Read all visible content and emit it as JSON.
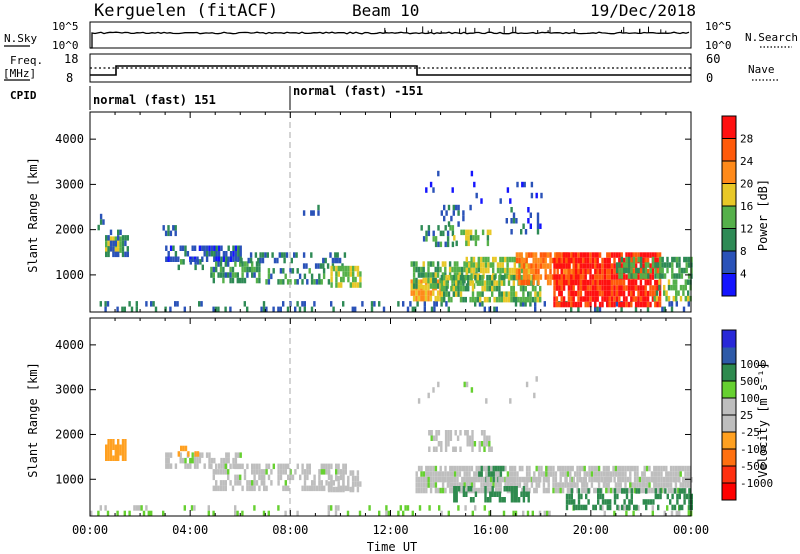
{
  "header": {
    "station": "Kerguelen (fitACF)",
    "beam": "Beam 10",
    "date": "19/Dec/2018"
  },
  "status_panels": {
    "nsky_label": "N.Sky",
    "nsky_ticks": [
      "10^5",
      "10^0"
    ],
    "nsearch_label": "N.Search",
    "nsearch_ticks": [
      "10^5",
      "10^0"
    ],
    "freq_label": "Freq.",
    "freq_unit": "[MHz]",
    "freq_ticks": [
      "18",
      "8"
    ],
    "nave_label": "Nave",
    "nave_ticks": [
      "60",
      "0"
    ],
    "cpid_label": "CPID",
    "cpid_segments": [
      "normal (fast) 151",
      "normal (fast) -151"
    ]
  },
  "colors": {
    "power_scale": [
      "#1414ff",
      "#2a52b8",
      "#2e8a55",
      "#55b04a",
      "#e8c828",
      "#ff8a1a",
      "#ff5a0a",
      "#ff1010"
    ],
    "velocity_scale": [
      "#2828d8",
      "#2e5aa8",
      "#2e8a4e",
      "#66d030",
      "#bebebe",
      "#bebebe",
      "#ffa020",
      "#ff7010",
      "#ff3010",
      "#ff0000"
    ],
    "background": "#ffffff"
  },
  "chart_data": [
    {
      "type": "heatmap",
      "title": "",
      "xlabel": "",
      "ylabel": "Slant Range [km]",
      "x_ticks": [
        "00:00",
        "04:00",
        "08:00",
        "12:00",
        "16:00",
        "20:00",
        "00:00"
      ],
      "y_ticks": [
        "1000",
        "2000",
        "3000",
        "4000"
      ],
      "xlim_hours": [
        0,
        24
      ],
      "ylim_km": [
        180,
        4600
      ],
      "colorbar_label": "Power [dB]",
      "colorbar_ticks": [
        "4",
        "8",
        "12",
        "16",
        "20",
        "24",
        "28"
      ],
      "colorbar_range": [
        0,
        32
      ],
      "regions": [
        {
          "t0": 0.0,
          "t1": 24.0,
          "r0": 180,
          "r1": 420,
          "value": 8,
          "density": 0.22
        },
        {
          "t0": 0.3,
          "t1": 0.6,
          "r0": 2100,
          "r1": 2350,
          "value": 8,
          "density": 0.5
        },
        {
          "t0": 0.6,
          "t1": 1.3,
          "r0": 1500,
          "r1": 1850,
          "value": 16,
          "density": 0.85
        },
        {
          "t0": 0.6,
          "t1": 1.5,
          "r0": 1400,
          "r1": 2000,
          "value": 8,
          "density": 0.5
        },
        {
          "t0": 2.8,
          "t1": 3.4,
          "r0": 1900,
          "r1": 2100,
          "value": 7,
          "density": 0.5
        },
        {
          "t0": 3.0,
          "t1": 6.0,
          "r0": 1400,
          "r1": 1650,
          "value": 6,
          "density": 0.65
        },
        {
          "t0": 3.5,
          "t1": 4.5,
          "r0": 1150,
          "r1": 1350,
          "value": 9,
          "density": 0.4
        },
        {
          "t0": 4.8,
          "t1": 6.8,
          "r0": 900,
          "r1": 1300,
          "value": 11,
          "density": 0.55
        },
        {
          "t0": 6.0,
          "t1": 8.3,
          "r0": 1300,
          "r1": 1500,
          "value": 8,
          "density": 0.55
        },
        {
          "t0": 7.0,
          "t1": 9.5,
          "r0": 900,
          "r1": 1150,
          "value": 10,
          "density": 0.5
        },
        {
          "t0": 8.5,
          "t1": 10.2,
          "r0": 1150,
          "r1": 1500,
          "value": 8,
          "density": 0.5
        },
        {
          "t0": 8.5,
          "t1": 9.3,
          "r0": 2350,
          "r1": 2550,
          "value": 8,
          "density": 0.35
        },
        {
          "t0": 9.6,
          "t1": 10.8,
          "r0": 800,
          "r1": 1200,
          "value": 16,
          "density": 0.7
        },
        {
          "t0": 12.8,
          "t1": 14.0,
          "r0": 500,
          "r1": 900,
          "value": 20,
          "density": 0.85
        },
        {
          "t0": 12.8,
          "t1": 15.5,
          "r0": 800,
          "r1": 1300,
          "value": 13,
          "density": 0.7
        },
        {
          "t0": 13.2,
          "t1": 14.5,
          "r0": 1700,
          "r1": 2100,
          "value": 10,
          "density": 0.5
        },
        {
          "t0": 14.0,
          "t1": 15.2,
          "r0": 2100,
          "r1": 2550,
          "value": 8,
          "density": 0.4
        },
        {
          "t0": 14.5,
          "t1": 16.0,
          "r0": 1750,
          "r1": 2000,
          "value": 14,
          "density": 0.5
        },
        {
          "t0": 15.0,
          "t1": 17.5,
          "r0": 1000,
          "r1": 1400,
          "value": 16,
          "density": 0.75
        },
        {
          "t0": 14.0,
          "t1": 18.0,
          "r0": 400,
          "r1": 1000,
          "value": 14,
          "density": 0.7
        },
        {
          "t0": 17.0,
          "t1": 19.5,
          "r0": 800,
          "r1": 1500,
          "value": 24,
          "density": 0.8
        },
        {
          "t0": 18.5,
          "t1": 22.8,
          "r0": 300,
          "r1": 1500,
          "value": 29,
          "density": 0.88
        },
        {
          "t0": 21.0,
          "t1": 24.0,
          "r0": 1000,
          "r1": 1400,
          "value": 12,
          "density": 0.6
        },
        {
          "t0": 22.5,
          "t1": 24.0,
          "r0": 500,
          "r1": 900,
          "value": 14,
          "density": 0.55
        },
        {
          "t0": 16.5,
          "t1": 18.0,
          "r0": 2000,
          "r1": 2500,
          "value": 6,
          "density": 0.25
        },
        {
          "t0": 13.0,
          "t1": 18.0,
          "r0": 2600,
          "r1": 3300,
          "value": 4,
          "density": 0.06
        }
      ]
    },
    {
      "type": "heatmap",
      "title": "",
      "xlabel": "Time UT",
      "ylabel": "Slant Range [km]",
      "x_ticks": [
        "00:00",
        "04:00",
        "08:00",
        "12:00",
        "16:00",
        "20:00",
        "00:00"
      ],
      "y_ticks": [
        "1000",
        "2000",
        "3000",
        "4000"
      ],
      "xlim_hours": [
        0,
        24
      ],
      "ylim_km": [
        180,
        4600
      ],
      "colorbar_label": "Velocity [m s⁻¹]",
      "colorbar_ticks": [
        "1000",
        "500",
        "100",
        "25",
        "-25",
        "-100",
        "-500",
        "-1000"
      ],
      "colorbar_range": [
        -1250,
        1250
      ],
      "regions": [
        {
          "t0": 0.0,
          "t1": 24.0,
          "r0": 180,
          "r1": 420,
          "value": 30,
          "density": 0.2
        },
        {
          "t0": 0.6,
          "t1": 1.4,
          "r0": 1500,
          "r1": 1900,
          "value": -300,
          "density": 0.85
        },
        {
          "t0": 3.0,
          "t1": 6.0,
          "r0": 1350,
          "r1": 1600,
          "value": 0,
          "density": 0.55
        },
        {
          "t0": 3.5,
          "t1": 4.3,
          "r0": 1550,
          "r1": 1750,
          "value": -200,
          "density": 0.35
        },
        {
          "t0": 4.8,
          "t1": 10.5,
          "r0": 850,
          "r1": 1350,
          "value": 0,
          "density": 0.55
        },
        {
          "t0": 9.5,
          "t1": 10.8,
          "r0": 800,
          "r1": 1200,
          "value": 0,
          "density": 0.65
        },
        {
          "t0": 13.0,
          "t1": 24.0,
          "r0": 700,
          "r1": 1300,
          "value": 0,
          "density": 0.82
        },
        {
          "t0": 13.5,
          "t1": 16.0,
          "r0": 1700,
          "r1": 2100,
          "value": 0,
          "density": 0.5
        },
        {
          "t0": 14.5,
          "t1": 17.5,
          "r0": 500,
          "r1": 850,
          "value": 150,
          "density": 0.5
        },
        {
          "t0": 19.0,
          "t1": 24.0,
          "r0": 400,
          "r1": 800,
          "value": 180,
          "density": 0.55
        },
        {
          "t0": 15.5,
          "t1": 16.5,
          "r0": 950,
          "r1": 1300,
          "value": 180,
          "density": 0.5
        },
        {
          "t0": 14.0,
          "t1": 24.0,
          "r0": 950,
          "r1": 1050,
          "value": -60,
          "density": 0.35
        },
        {
          "t0": 13.0,
          "t1": 18.0,
          "r0": 2600,
          "r1": 3300,
          "value": 0,
          "density": 0.05
        }
      ]
    }
  ]
}
